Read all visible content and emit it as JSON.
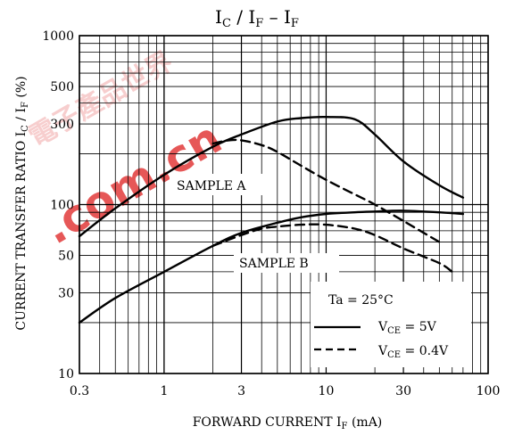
{
  "watermark": {
    "text_cn": "電子產品世界",
    "text_url": ".com.cn",
    "color": "#e03030",
    "color_light": "#f0a0a0"
  },
  "chart_data": {
    "type": "line",
    "title": {
      "main": "I",
      "sub1": "C",
      "slash": " / I",
      "sub2": "F",
      "dash": "  –  I",
      "sub3": "F"
    },
    "xlabel": {
      "text": "FORWARD CURRENT   I",
      "sub": "F",
      "unit": "   (mA)"
    },
    "ylabel": {
      "text": "CURRENT TRANSFER RATIO   I",
      "sub1": "C",
      "slash": " / I",
      "sub2": "F",
      "unit": "   (%)"
    },
    "xscale": "log",
    "yscale": "log",
    "xlim": [
      0.3,
      100
    ],
    "ylim": [
      10,
      1000
    ],
    "xticks": [
      0.3,
      1,
      3,
      10,
      30,
      100
    ],
    "xtick_labels": [
      "0.3",
      "1",
      "3",
      "10",
      "30",
      "100"
    ],
    "yticks": [
      10,
      30,
      50,
      100,
      300,
      500,
      1000
    ],
    "ytick_labels": [
      "10",
      "30",
      "50",
      "100",
      "300",
      "500",
      "1000"
    ],
    "grid": true,
    "annotations": {
      "sample_a": "SAMPLE A",
      "sample_b": "SAMPLE B",
      "condition": "Ta = 25°C"
    },
    "legend": {
      "placement": "bottom-right",
      "solid": {
        "text": "V",
        "sub": "CE",
        "value": " = 5V",
        "style": "solid"
      },
      "dashed": {
        "text": "V",
        "sub": "CE",
        "value": " = 0.4V",
        "style": "dashed"
      }
    },
    "series": [
      {
        "sample": "A",
        "style": "solid",
        "x": [
          0.3,
          0.5,
          1,
          2,
          3,
          5,
          7,
          10,
          15,
          20,
          30,
          50,
          70
        ],
        "y": [
          65,
          95,
          150,
          220,
          260,
          310,
          325,
          330,
          320,
          260,
          180,
          130,
          110
        ]
      },
      {
        "sample": "A",
        "style": "dashed",
        "x": [
          2,
          2.5,
          3,
          4,
          5,
          7,
          10,
          15,
          20,
          30,
          50
        ],
        "y": [
          230,
          240,
          240,
          225,
          205,
          170,
          140,
          115,
          100,
          80,
          60
        ]
      },
      {
        "sample": "B",
        "style": "solid",
        "x": [
          0.3,
          0.5,
          1,
          2,
          3,
          5,
          7,
          10,
          15,
          20,
          30,
          50,
          70
        ],
        "y": [
          20,
          28,
          40,
          57,
          68,
          78,
          84,
          88,
          90,
          91,
          92,
          90,
          88
        ]
      },
      {
        "sample": "B",
        "style": "dashed",
        "x": [
          2,
          3,
          4,
          5,
          7,
          10,
          15,
          20,
          30,
          50,
          60
        ],
        "y": [
          57,
          66,
          72,
          74,
          76,
          76,
          72,
          66,
          55,
          45,
          40
        ]
      }
    ]
  }
}
